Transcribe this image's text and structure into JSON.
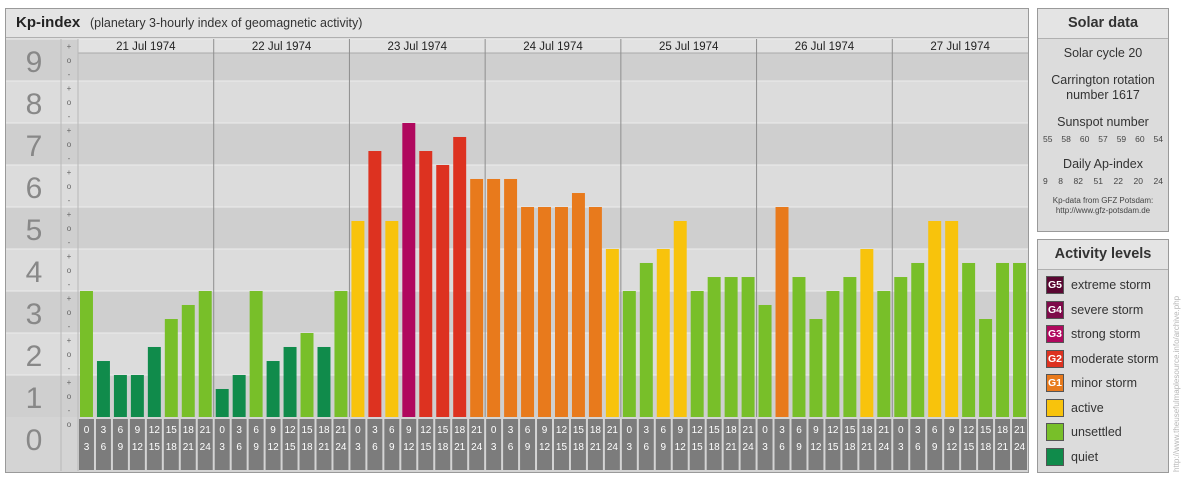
{
  "title": {
    "main": "Kp-index",
    "subtitle": "(planetary 3-hourly index of geomagnetic activity)"
  },
  "chart_data": {
    "type": "bar",
    "ylim": [
      0,
      9
    ],
    "y_ticks": [
      "0",
      "1",
      "2",
      "3",
      "4",
      "5",
      "6",
      "7",
      "8",
      "9"
    ],
    "y_minor_labels": [
      "+",
      "o",
      "-"
    ],
    "days": [
      "21 Jul 1974",
      "22 Jul 1974",
      "23 Jul 1974",
      "24 Jul 1974",
      "25 Jul 1974",
      "26 Jul 1974",
      "27 Jul 1974"
    ],
    "hour_labels": [
      [
        "0",
        "3"
      ],
      [
        "3",
        "6"
      ],
      [
        "6",
        "9"
      ],
      [
        "9",
        "12"
      ],
      [
        "12",
        "15"
      ],
      [
        "15",
        "18"
      ],
      [
        "18",
        "21"
      ],
      [
        "21",
        "24"
      ]
    ],
    "values": [
      3.0,
      1.333,
      1.0,
      1.0,
      1.667,
      2.333,
      2.667,
      3.0,
      0.667,
      1.0,
      3.0,
      1.333,
      1.667,
      2.0,
      1.667,
      3.0,
      4.667,
      6.333,
      4.667,
      7.0,
      6.333,
      6.0,
      6.667,
      5.667,
      5.667,
      5.667,
      5.0,
      5.0,
      5.0,
      5.333,
      5.0,
      4.0,
      3.0,
      3.667,
      4.0,
      4.667,
      3.0,
      3.333,
      3.333,
      3.333,
      2.667,
      5.0,
      3.333,
      2.333,
      3.0,
      3.333,
      4.0,
      3.0,
      3.333,
      3.667,
      4.667,
      4.667,
      3.667,
      2.333,
      3.667,
      3.667
    ]
  },
  "solar": {
    "title": "Solar data",
    "cycle": "Solar cycle 20",
    "carrington_1": "Carrington rotation",
    "carrington_2": "number 1617",
    "sunspot_label": "Sunspot number",
    "sunspot_values": [
      "55",
      "58",
      "60",
      "57",
      "59",
      "60",
      "54"
    ],
    "ap_label": "Daily Ap-index",
    "ap_values": [
      "9",
      "8",
      "82",
      "51",
      "22",
      "20",
      "24"
    ],
    "source_1": "Kp-data from GFZ Potsdam:",
    "source_2": "http://www.gfz-potsdam.de"
  },
  "activity": {
    "title": "Activity levels",
    "levels": [
      {
        "code": "G5",
        "label": "extreme storm",
        "color": "#5a0632"
      },
      {
        "code": "G4",
        "label": "severe storm",
        "color": "#7e0a4a"
      },
      {
        "code": "G3",
        "label": "strong storm",
        "color": "#b0085e"
      },
      {
        "code": "G2",
        "label": "moderate storm",
        "color": "#dd3220"
      },
      {
        "code": "G1",
        "label": "minor storm",
        "color": "#e87a1c"
      },
      {
        "code": "",
        "label": "active",
        "color": "#f8c30c"
      },
      {
        "code": "",
        "label": "unsettled",
        "color": "#78bf29"
      },
      {
        "code": "",
        "label": "quiet",
        "color": "#108b4b"
      }
    ]
  },
  "watermark": "http://www.theusefulmaplesource.info/archive.php"
}
